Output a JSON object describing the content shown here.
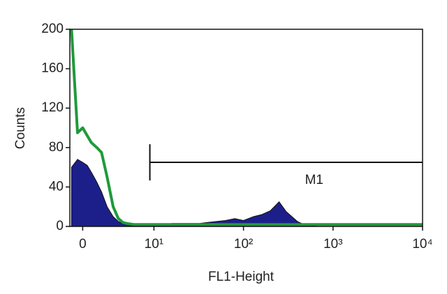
{
  "chart_data": {
    "type": "histogram-overlay",
    "x_label": "FL1-Height",
    "y_label": "Counts",
    "log_x": true,
    "xlim": [
      1.15,
      10000
    ],
    "xticks": [
      {
        "value": 1.6,
        "label": "0"
      },
      {
        "value": 10,
        "label": "10¹"
      },
      {
        "value": 100,
        "label": "10²"
      },
      {
        "value": 1000,
        "label": "10³"
      },
      {
        "value": 10000,
        "label": "10⁴"
      }
    ],
    "ylim": [
      0,
      200
    ],
    "yticks": [
      0,
      40,
      80,
      120,
      160,
      200
    ],
    "x": [
      1.2,
      1.4,
      1.6,
      1.8,
      2,
      2.3,
      2.6,
      3,
      3.5,
      4,
      4.5,
      5,
      6,
      7,
      8,
      10,
      13,
      16,
      20,
      25,
      32,
      40,
      50,
      63,
      80,
      100,
      130,
      160,
      200,
      250,
      300,
      400,
      500,
      700,
      1000,
      2000,
      5000,
      10000
    ],
    "series": [
      {
        "style": "filled",
        "color": "#1c1f8a",
        "values": [
          60,
          68,
          65,
          62,
          55,
          45,
          35,
          20,
          10,
          5,
          3,
          3,
          2,
          2,
          2,
          2,
          2,
          3,
          3,
          3,
          3,
          4,
          5,
          6,
          8,
          6,
          10,
          12,
          16,
          25,
          15,
          5,
          1,
          0,
          0,
          0,
          0,
          0
        ]
      },
      {
        "style": "line",
        "color": "#1f9a3a",
        "values": [
          200,
          95,
          100,
          92,
          85,
          80,
          75,
          50,
          20,
          8,
          4,
          3,
          2,
          2,
          2,
          2,
          2,
          2,
          2,
          2,
          2,
          2,
          2,
          2,
          2,
          2,
          2,
          2,
          2,
          2,
          2,
          2,
          2,
          2,
          2,
          2,
          2,
          2
        ]
      }
    ],
    "markers": [
      {
        "label": "M1",
        "x": [
          9,
          10000
        ],
        "y": 65
      }
    ]
  }
}
